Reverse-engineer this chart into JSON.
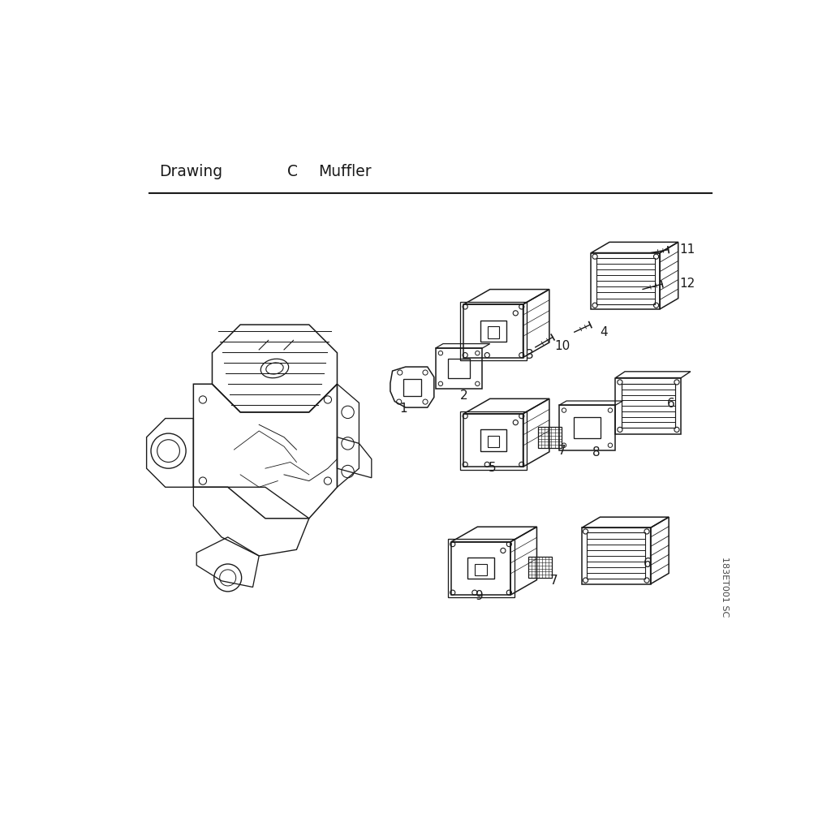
{
  "drawing_label": "Drawing",
  "drawing_letter": "C",
  "drawing_name": "Muffler",
  "bg_color": "#ffffff",
  "line_color": "#1a1a1a",
  "text_color": "#1a1a1a",
  "footnote": "183ET001 SC",
  "fig_width": 10.24,
  "fig_height": 10.24,
  "dpi": 100
}
